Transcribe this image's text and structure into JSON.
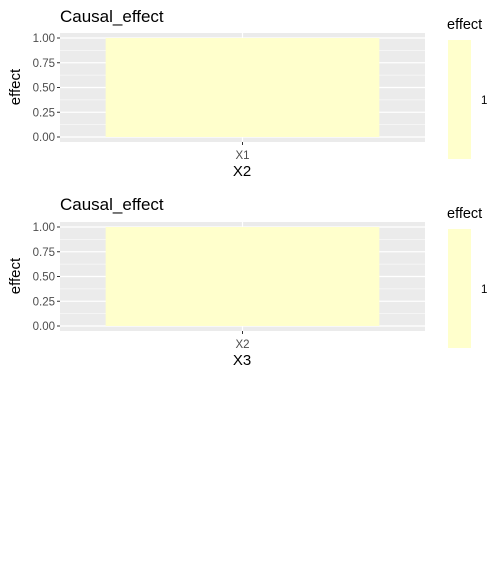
{
  "chart_data": [
    {
      "type": "heatmap",
      "title": "Causal_effect",
      "xlabel": "X2",
      "ylabel": "effect",
      "categories": [
        "X1"
      ],
      "values": [
        1
      ],
      "ylim": [
        0,
        1
      ],
      "yticks": [
        "0.00",
        "0.25",
        "0.50",
        "0.75",
        "1.00"
      ],
      "fill_color": "#FFFFCC",
      "panel_color": "#EBEBEB",
      "grid": true,
      "legend": {
        "title": "effect",
        "labels": [
          "1"
        ],
        "position": "right"
      }
    },
    {
      "type": "heatmap",
      "title": "Causal_effect",
      "xlabel": "X3",
      "ylabel": "effect",
      "categories": [
        "X2"
      ],
      "values": [
        1
      ],
      "ylim": [
        0,
        1
      ],
      "yticks": [
        "0.00",
        "0.25",
        "0.50",
        "0.75",
        "1.00"
      ],
      "fill_color": "#FFFFCC",
      "panel_color": "#EBEBEB",
      "grid": true,
      "legend": {
        "title": "effect",
        "labels": [
          "1"
        ],
        "position": "right"
      }
    }
  ]
}
